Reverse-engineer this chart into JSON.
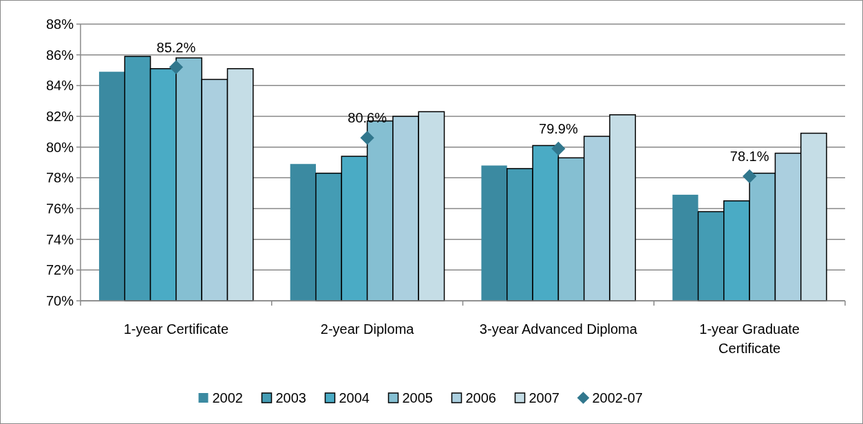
{
  "chart_data": {
    "type": "bar",
    "categories": [
      "1-year Certificate",
      "2-year Diploma",
      "3-year Advanced Diploma",
      "1-year Graduate Certificate"
    ],
    "series": [
      {
        "name": "2002",
        "color": "#3b8aa1",
        "values": [
          84.9,
          78.9,
          78.8,
          76.9
        ]
      },
      {
        "name": "2003",
        "color": "#449cb4",
        "values": [
          85.9,
          78.3,
          78.6,
          75.8
        ]
      },
      {
        "name": "2004",
        "color": "#4aabc5",
        "values": [
          85.1,
          79.4,
          80.1,
          76.5
        ]
      },
      {
        "name": "2005",
        "color": "#85bfd2",
        "values": [
          85.8,
          81.7,
          79.3,
          78.3
        ]
      },
      {
        "name": "2006",
        "color": "#abcfdf",
        "values": [
          84.4,
          82.0,
          80.7,
          79.6
        ]
      },
      {
        "name": "2007",
        "color": "#c5dde6",
        "values": [
          85.1,
          82.3,
          82.1,
          80.9
        ]
      },
      {
        "name": "2002-07",
        "type": "scatter",
        "color": "#31778d",
        "marker": "diamond",
        "x": [
          "1-year Certificate",
          "2-year Diploma",
          "3-year Advanced Diploma",
          "1-year Graduate Certificate"
        ],
        "values": [
          85.2,
          80.6,
          79.9,
          78.1
        ],
        "value_labels": [
          "85.2%",
          "80.6%",
          "79.9%",
          "78.1%"
        ]
      }
    ],
    "ylim": [
      70,
      88
    ],
    "yticks": [
      {
        "value": 70,
        "label": "70%"
      },
      {
        "value": 72,
        "label": "72%"
      },
      {
        "value": 74,
        "label": "74%"
      },
      {
        "value": 76,
        "label": "76%"
      },
      {
        "value": 78,
        "label": "78%"
      },
      {
        "value": 80,
        "label": "80%"
      },
      {
        "value": 82,
        "label": "82%"
      },
      {
        "value": 84,
        "label": "84%"
      },
      {
        "value": 86,
        "label": "86%"
      },
      {
        "value": 88,
        "label": "88%"
      }
    ],
    "grid": "y",
    "legend": "bottom"
  }
}
